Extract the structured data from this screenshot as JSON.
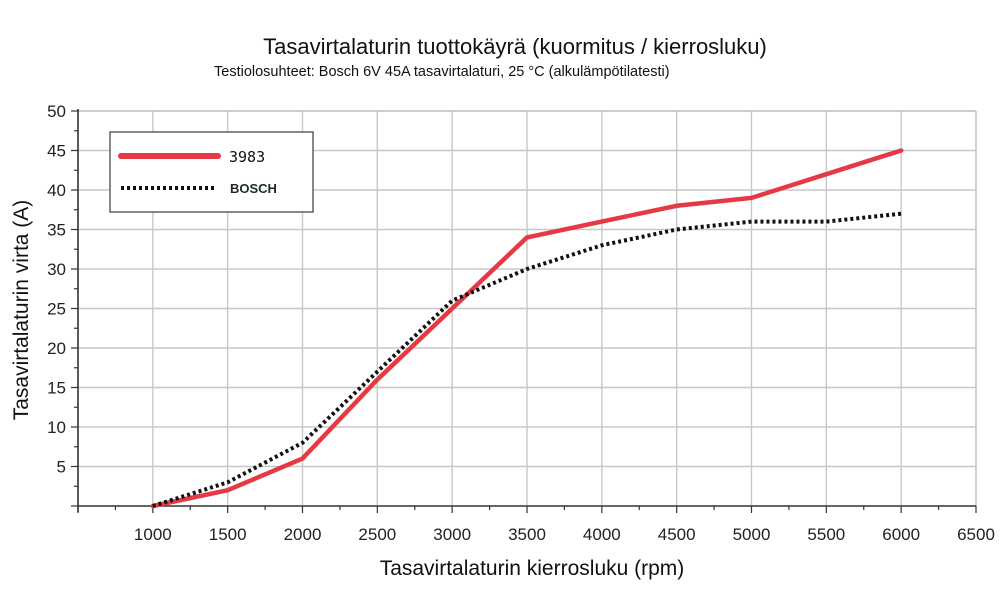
{
  "chart_data": {
    "type": "line",
    "title": "Tasavirtalaturin tuottokäyrä (kuormitus / kierrosluku)",
    "subtitle": "Testiolosuhteet: Bosch 6V 45A tasavirtalaturi, 25 °C (alkulämpötilatesti)",
    "xlabel": "Tasavirtalaturin kierrosluku (rpm)",
    "ylabel": "Tasavirtalaturin virta (A)",
    "xlim": [
      500,
      6500
    ],
    "ylim": [
      0,
      50
    ],
    "x_ticks": [
      1000,
      1500,
      2000,
      2500,
      3000,
      3500,
      4000,
      4500,
      5000,
      5500,
      6000,
      6500
    ],
    "y_ticks": [
      5,
      10,
      15,
      20,
      25,
      30,
      35,
      40,
      45,
      50
    ],
    "grid": true,
    "legend_position": "top-left",
    "series": [
      {
        "name": "3983",
        "color": "#e63946",
        "style": "solid",
        "x": [
          1000,
          1500,
          2000,
          2500,
          3000,
          3500,
          4000,
          4500,
          5000,
          5500,
          6000
        ],
        "y": [
          0,
          2,
          6,
          16,
          25,
          34,
          36,
          38,
          39,
          42,
          45
        ]
      },
      {
        "name": "BOSCH",
        "color": "#111111",
        "style": "dotted",
        "x": [
          1000,
          1500,
          2000,
          2500,
          3000,
          3500,
          4000,
          4500,
          5000,
          5500,
          6000
        ],
        "y": [
          0,
          3,
          8,
          17,
          26,
          30,
          33,
          35,
          36,
          36,
          37
        ]
      }
    ]
  }
}
